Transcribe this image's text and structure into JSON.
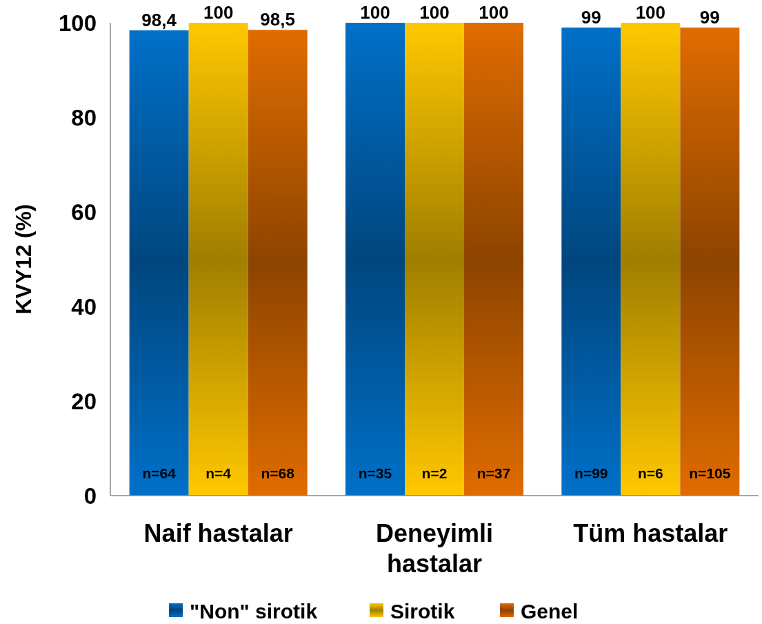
{
  "chart_data": {
    "type": "bar",
    "ylabel": "KVY12 (%)",
    "categories": [
      "Naif hastalar",
      "Deneyimli hastalar",
      "Tüm hastalar"
    ],
    "series": [
      {
        "name": "\"Non\" sirotik",
        "color": "#0070c8",
        "values": [
          98.4,
          100,
          99
        ],
        "value_labels": [
          "98,4",
          "100",
          "99"
        ]
      },
      {
        "name": "Sirotik",
        "color": "#ffc800",
        "values": [
          100,
          100,
          100
        ],
        "value_labels": [
          "100",
          "100",
          "100"
        ]
      },
      {
        "name": "Genel",
        "color": "#e06c00",
        "values": [
          98.5,
          100,
          99
        ],
        "value_labels": [
          "98,5",
          "100",
          "99"
        ]
      }
    ],
    "annotations": [
      "n=64",
      "n=4",
      "n=68",
      "n=35",
      "n=2",
      "n=37",
      "n=99",
      "n=6",
      "n=105"
    ],
    "ylim": [
      0,
      100
    ],
    "yticks": [
      0,
      20,
      40,
      60,
      80,
      100
    ],
    "legend": "bottom"
  }
}
